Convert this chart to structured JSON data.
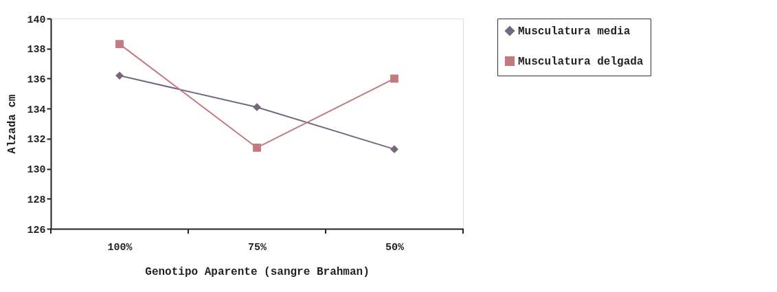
{
  "chart_data": {
    "type": "line",
    "xlabel": "Genotipo Aparente (sangre Brahman)",
    "ylabel": "Alzada cm",
    "categories": [
      "100%",
      "75%",
      "50%"
    ],
    "series": [
      {
        "name": "Musculatura media",
        "color": "#76677f",
        "marker": "diamond",
        "values": [
          136.2,
          134.1,
          131.3
        ]
      },
      {
        "name": "Musculatura delgada",
        "color": "#c27a80",
        "marker": "square",
        "values": [
          138.3,
          131.4,
          136.0
        ]
      }
    ],
    "ylim": [
      126,
      140
    ],
    "yticks": [
      126,
      128,
      130,
      132,
      134,
      136,
      138,
      140
    ],
    "grid": false,
    "legend": "right",
    "line_style": "solid"
  }
}
